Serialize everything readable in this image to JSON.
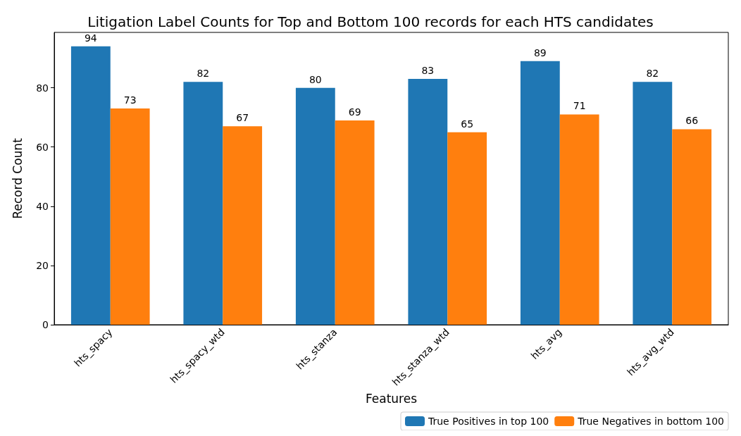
{
  "chart_data": {
    "type": "bar",
    "title": "Litigation Label Counts for Top and Bottom 100 records for each HTS candidates",
    "xlabel": "Features",
    "ylabel": "Record Count",
    "categories": [
      "hts_spacy",
      "hts_spacy_wtd",
      "hts_stanza",
      "hts_stanza_wtd",
      "hts_avg",
      "hts_avg_wtd"
    ],
    "series": [
      {
        "name": "True Positives in top 100",
        "color": "#1f77b4",
        "values": [
          94,
          82,
          80,
          83,
          89,
          82
        ]
      },
      {
        "name": "True Negatives in bottom 100",
        "color": "#ff7f0e",
        "values": [
          73,
          67,
          69,
          65,
          71,
          66
        ]
      }
    ],
    "ylim": [
      0,
      98.7
    ],
    "yticks": [
      0,
      20,
      40,
      60,
      80
    ],
    "data_labels": true,
    "legend": "bottom right",
    "grid": false
  }
}
